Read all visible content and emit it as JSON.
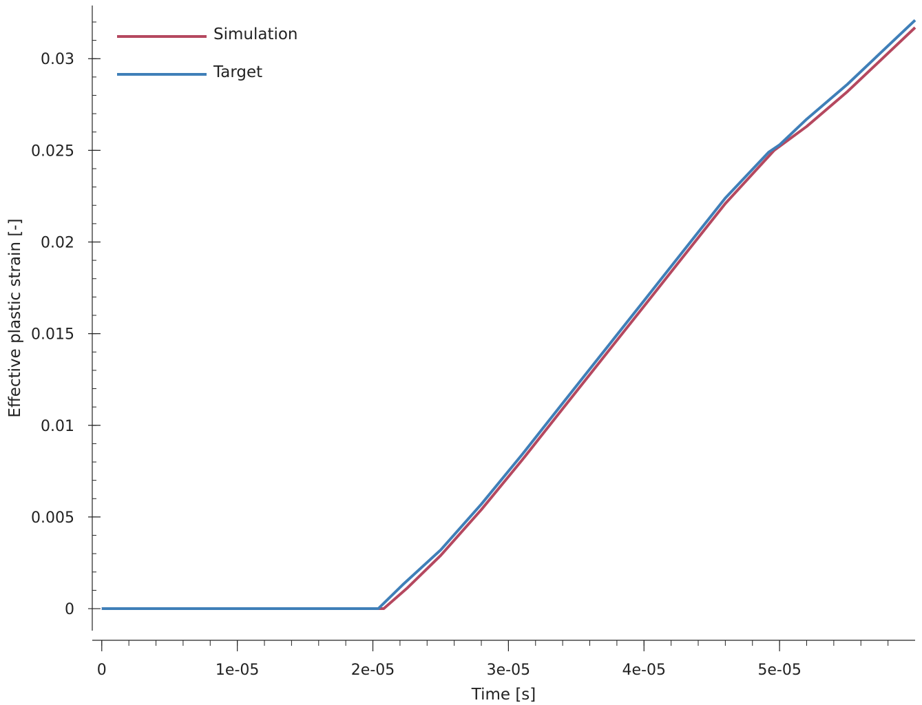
{
  "chart_data": {
    "type": "line",
    "title": "",
    "xlabel": "Time [s]",
    "ylabel": "Effective plastic strain [-]",
    "xlim": [
      -7e-07,
      6e-05
    ],
    "ylim": [
      -0.0012,
      0.0329
    ],
    "x_ticks": [
      0,
      1e-05,
      2e-05,
      3e-05,
      4e-05,
      5e-05
    ],
    "x_tick_labels": [
      "0",
      "1e-05",
      "2e-05",
      "3e-05",
      "4e-05",
      "5e-05"
    ],
    "y_ticks": [
      0,
      0.005,
      0.01,
      0.015,
      0.02,
      0.025,
      0.03
    ],
    "y_tick_labels": [
      "0",
      "0.005",
      "0.01",
      "0.015",
      "0.02",
      "0.025",
      "0.03"
    ],
    "grid": false,
    "legend_position": "top-left",
    "series": [
      {
        "name": "Simulation",
        "color": "#b5485f",
        "x": [
          0,
          2.08e-05,
          2.25e-05,
          2.5e-05,
          2.8e-05,
          3.1e-05,
          3.4e-05,
          3.7e-05,
          4e-05,
          4.3e-05,
          4.6e-05,
          4.96e-05,
          5.2e-05,
          5.5e-05,
          6e-05
        ],
        "y": [
          0,
          0,
          0.0011,
          0.0029,
          0.0054,
          0.0081,
          0.0109,
          0.0137,
          0.0165,
          0.0193,
          0.0221,
          0.025,
          0.0263,
          0.0282,
          0.0317
        ]
      },
      {
        "name": "Target",
        "color": "#3f7fb8",
        "x": [
          0,
          2.04e-05,
          2.22e-05,
          2.5e-05,
          2.8e-05,
          3.1e-05,
          3.4e-05,
          3.7e-05,
          4e-05,
          4.3e-05,
          4.6e-05,
          4.92e-05,
          5e-05,
          5.2e-05,
          5.5e-05,
          6e-05
        ],
        "y": [
          0,
          0,
          0.0013,
          0.0032,
          0.0057,
          0.0084,
          0.0112,
          0.014,
          0.0168,
          0.0196,
          0.0224,
          0.0249,
          0.0253,
          0.0267,
          0.0286,
          0.0321
        ]
      }
    ]
  }
}
